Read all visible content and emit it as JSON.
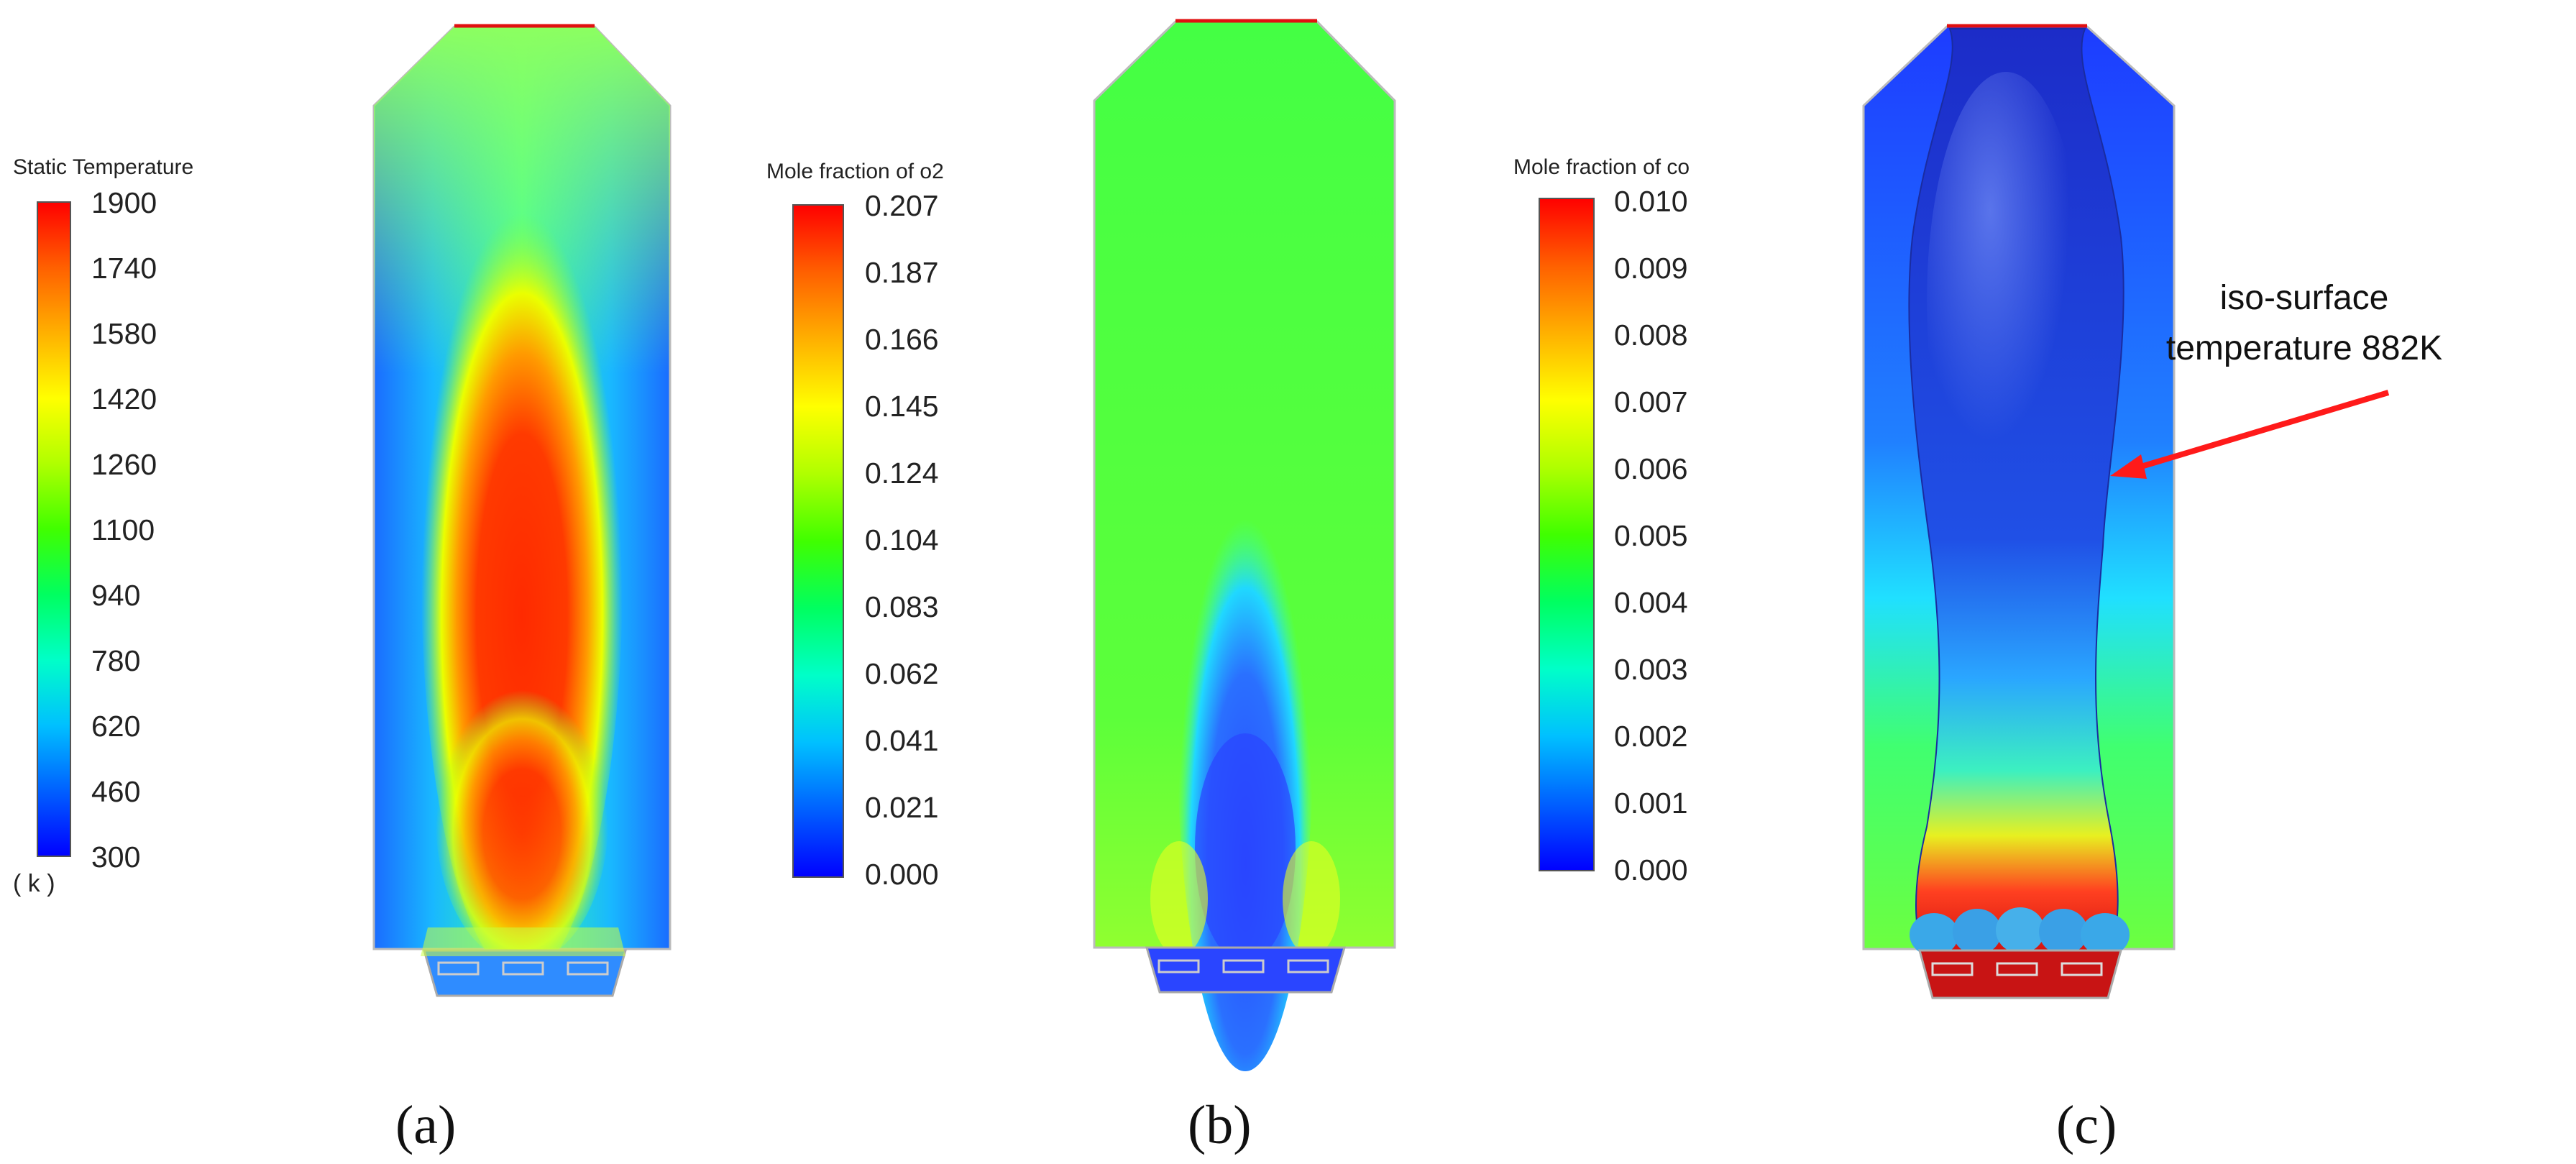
{
  "panels": [
    {
      "label": "(a)",
      "colorbar": {
        "title": "Static Temperature",
        "ticks": [
          "1900",
          "1740",
          "1580",
          "1420",
          "1260",
          "1100",
          "940",
          "780",
          "620",
          "460",
          "300"
        ],
        "unit": "( k )"
      }
    },
    {
      "label": "(b)",
      "colorbar": {
        "title": "Mole fraction of o2",
        "ticks": [
          "0.207",
          "0.187",
          "0.166",
          "0.145",
          "0.124",
          "0.104",
          "0.083",
          "0.062",
          "0.041",
          "0.021",
          "0.000"
        ]
      }
    },
    {
      "label": "(c)",
      "colorbar": {
        "title": "Mole fraction of co",
        "ticks": [
          "0.010",
          "0.009",
          "0.008",
          "0.007",
          "0.006",
          "0.005",
          "0.004",
          "0.003",
          "0.002",
          "0.001",
          "0.000"
        ]
      },
      "annotation": {
        "line1": "iso-surface",
        "line2": "temperature 882K",
        "color": "#ff1a1a"
      }
    }
  ],
  "colormap": [
    "#0000ff",
    "#0060ff",
    "#00c0ff",
    "#00ffc8",
    "#00ff60",
    "#40ff00",
    "#b0ff00",
    "#ffff00",
    "#ffb000",
    "#ff6000",
    "#ff0000"
  ]
}
